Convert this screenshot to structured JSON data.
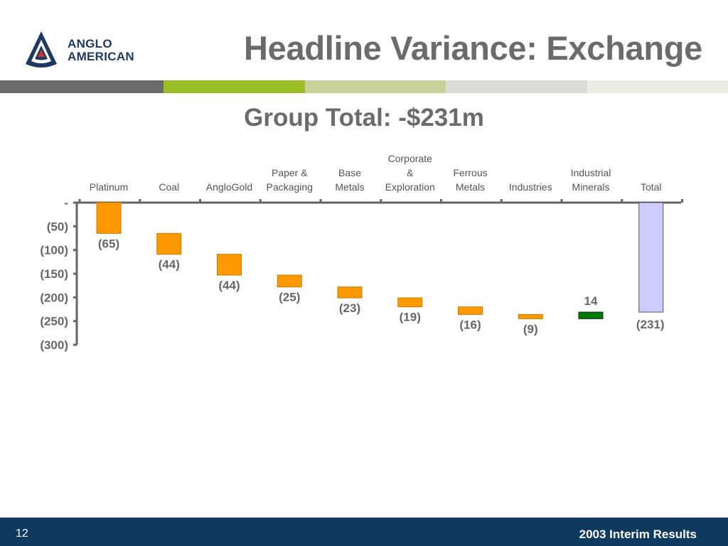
{
  "header": {
    "logo_line1": "ANGLO",
    "logo_line2": "AMERICAN",
    "title": "Headline Variance: Exchange"
  },
  "subtitle": "Group Total: -$231m",
  "colors": {
    "title_gray": "#6b6b6b",
    "decrease": "#ff9900",
    "increase": "#007a00",
    "total": "#ccccff",
    "footer": "#0f3a5f",
    "logo_navy": "#1f3a5f",
    "logo_red": "#d9302c",
    "band": [
      "#6b6b6b",
      "#9abf26",
      "#c9d19b",
      "#dcdcd6",
      "#ecece4"
    ]
  },
  "chart_data": {
    "type": "bar",
    "subtype": "waterfall",
    "categories": [
      [
        "Platinum"
      ],
      [
        "Coal"
      ],
      [
        "AngloGold"
      ],
      [
        "Paper &",
        "Packaging"
      ],
      [
        "Base",
        "Metals"
      ],
      [
        "Corporate",
        "&",
        "Exploration"
      ],
      [
        "Ferrous",
        "Metals"
      ],
      [
        "Industries"
      ],
      [
        "Industrial",
        "Minerals"
      ],
      [
        "Total"
      ]
    ],
    "values": [
      -65,
      -44,
      -44,
      -25,
      -23,
      -19,
      -16,
      -9,
      14,
      -231
    ],
    "value_labels": [
      "(65)",
      "(44)",
      "(44)",
      "(25)",
      "(23)",
      "(19)",
      "(16)",
      "(9)",
      "14",
      "(231)"
    ],
    "total_index": 9,
    "ylim": [
      -300,
      0
    ],
    "yticks": [
      0,
      -50,
      -100,
      -150,
      -200,
      -250,
      -300
    ],
    "ytick_labels": [
      "-",
      "(50)",
      "(100)",
      "(150)",
      "(200)",
      "(250)",
      "(300)"
    ],
    "legend": "none",
    "grid": false
  },
  "footer": {
    "page_number": "12",
    "label": "2003 Interim Results"
  }
}
